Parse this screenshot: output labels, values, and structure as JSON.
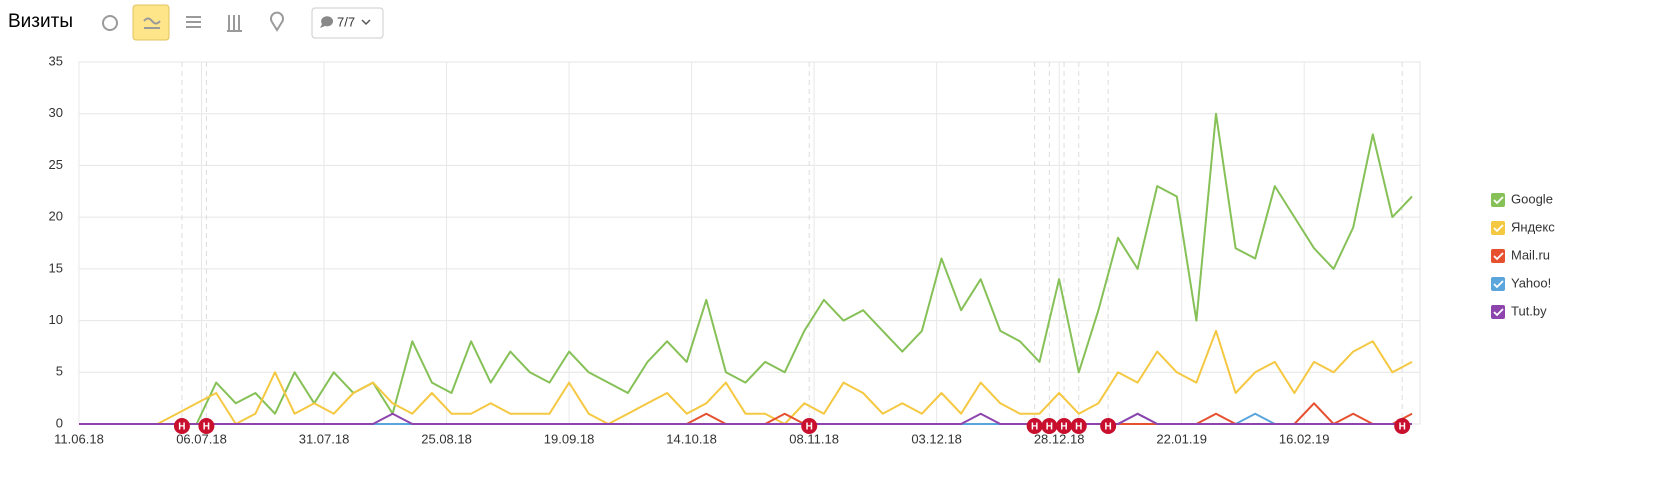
{
  "header": {
    "title": "Визиты",
    "filter": "7/7"
  },
  "chart_data": {
    "type": "line",
    "x": [
      "11.06.18",
      "15.06.18",
      "19.06.18",
      "23.06.18",
      "27.06.18",
      "01.07.18",
      "05.07.18",
      "09.07.18",
      "13.07.18",
      "17.07.18",
      "21.07.18",
      "25.07.18",
      "29.07.18",
      "02.08.18",
      "06.08.18",
      "10.08.18",
      "14.08.18",
      "18.08.18",
      "22.08.18",
      "26.08.18",
      "30.08.18",
      "03.09.18",
      "07.09.18",
      "11.09.18",
      "15.09.18",
      "19.09.18",
      "23.09.18",
      "27.09.18",
      "01.10.18",
      "05.10.18",
      "09.10.18",
      "13.10.18",
      "17.10.18",
      "21.10.18",
      "25.10.18",
      "29.10.18",
      "02.11.18",
      "06.11.18",
      "10.11.18",
      "14.11.18",
      "18.11.18",
      "22.11.18",
      "26.11.18",
      "30.11.18",
      "04.12.18",
      "08.12.18",
      "12.12.18",
      "16.12.18",
      "20.12.18",
      "24.12.18",
      "28.12.18",
      "01.01.19",
      "05.01.19",
      "09.01.19",
      "13.01.19",
      "17.01.19",
      "21.01.19",
      "25.01.19",
      "29.01.19",
      "02.02.19",
      "06.02.19",
      "10.02.19",
      "14.02.19",
      "18.02.19",
      "22.02.19",
      "26.02.19",
      "02.03.19",
      "06.03.19",
      "10.03.19"
    ],
    "series": [
      {
        "name": "Google",
        "color": "#86c157",
        "values": [
          0,
          0,
          0,
          0,
          0,
          0,
          0,
          4,
          2,
          3,
          1,
          5,
          2,
          5,
          3,
          4,
          1,
          8,
          4,
          3,
          8,
          4,
          7,
          5,
          4,
          7,
          5,
          4,
          3,
          6,
          8,
          6,
          12,
          5,
          4,
          6,
          5,
          9,
          12,
          10,
          11,
          9,
          7,
          9,
          16,
          11,
          14,
          9,
          8,
          6,
          14,
          5,
          11,
          18,
          15,
          23,
          22,
          10,
          30,
          17,
          16,
          23,
          20,
          17,
          15,
          19,
          28,
          20,
          22
        ]
      },
      {
        "name": "Яндекс",
        "color": "#f5c842",
        "values": [
          0,
          0,
          0,
          0,
          0,
          1,
          2,
          3,
          0,
          1,
          5,
          1,
          2,
          1,
          3,
          4,
          2,
          1,
          3,
          1,
          1,
          2,
          1,
          1,
          1,
          4,
          1,
          0,
          1,
          2,
          3,
          1,
          2,
          4,
          1,
          1,
          0,
          2,
          1,
          4,
          3,
          1,
          2,
          1,
          3,
          1,
          4,
          2,
          1,
          1,
          3,
          1,
          2,
          5,
          4,
          7,
          5,
          4,
          9,
          3,
          5,
          6,
          3,
          6,
          5,
          7,
          8,
          5,
          6
        ]
      },
      {
        "name": "Mail.ru",
        "color": "#e6502f",
        "values": [
          0,
          0,
          0,
          0,
          0,
          0,
          0,
          0,
          0,
          0,
          0,
          0,
          0,
          0,
          0,
          0,
          0,
          0,
          0,
          0,
          0,
          0,
          0,
          0,
          0,
          0,
          0,
          0,
          0,
          0,
          0,
          0,
          1,
          0,
          0,
          0,
          1,
          0,
          0,
          0,
          0,
          0,
          0,
          0,
          0,
          0,
          0,
          0,
          0,
          0,
          0,
          0,
          0,
          0,
          0,
          0,
          0,
          0,
          1,
          0,
          0,
          0,
          0,
          2,
          0,
          1,
          0,
          0,
          1
        ]
      },
      {
        "name": "Yahoo!",
        "color": "#5aa5dc",
        "values": [
          0,
          0,
          0,
          0,
          0,
          0,
          0,
          0,
          0,
          0,
          0,
          0,
          0,
          0,
          0,
          0,
          0,
          0,
          0,
          0,
          0,
          0,
          0,
          0,
          0,
          0,
          0,
          0,
          0,
          0,
          0,
          0,
          0,
          0,
          0,
          0,
          0,
          0,
          0,
          0,
          0,
          0,
          0,
          0,
          0,
          0,
          0,
          0,
          0,
          0,
          0,
          0,
          0,
          0,
          1,
          0,
          0,
          0,
          0,
          0,
          1,
          0,
          0,
          0,
          0,
          0,
          0,
          0,
          0
        ]
      },
      {
        "name": "Tut.by",
        "color": "#8e44ad",
        "values": [
          0,
          0,
          0,
          0,
          0,
          0,
          0,
          0,
          0,
          0,
          0,
          0,
          0,
          0,
          0,
          0,
          1,
          0,
          0,
          0,
          0,
          0,
          0,
          0,
          0,
          0,
          0,
          0,
          0,
          0,
          0,
          0,
          0,
          0,
          0,
          0,
          0,
          0,
          0,
          0,
          0,
          0,
          0,
          0,
          0,
          0,
          1,
          0,
          0,
          0,
          0,
          0,
          0,
          0,
          1,
          0,
          0,
          0,
          0,
          0,
          0,
          0,
          0,
          0,
          0,
          0,
          0,
          0,
          0
        ]
      }
    ],
    "xlim": [
      "11.06.18",
      "10.03.19"
    ],
    "xticks": [
      "11.06.18",
      "06.07.18",
      "31.07.18",
      "25.08.18",
      "19.09.18",
      "14.10.18",
      "08.11.18",
      "03.12.18",
      "28.12.18",
      "22.01.19",
      "16.02.19"
    ],
    "ylim": [
      0,
      35
    ],
    "yticks": [
      0,
      5,
      10,
      15,
      20,
      25,
      30,
      35
    ],
    "grid": true,
    "legend": "right",
    "annotations": [
      {
        "x": "02.07.18",
        "text": "Н"
      },
      {
        "x": "07.07.18",
        "text": "Н"
      },
      {
        "x": "07.11.18",
        "text": "Н"
      },
      {
        "x": "23.12.18",
        "text": "Н"
      },
      {
        "x": "26.12.18",
        "text": "Н"
      },
      {
        "x": "29.12.18",
        "text": "Н"
      },
      {
        "x": "01.01.19",
        "text": "Н"
      },
      {
        "x": "07.01.19",
        "text": "Н"
      },
      {
        "x": "08.03.19",
        "text": "Н"
      }
    ]
  }
}
